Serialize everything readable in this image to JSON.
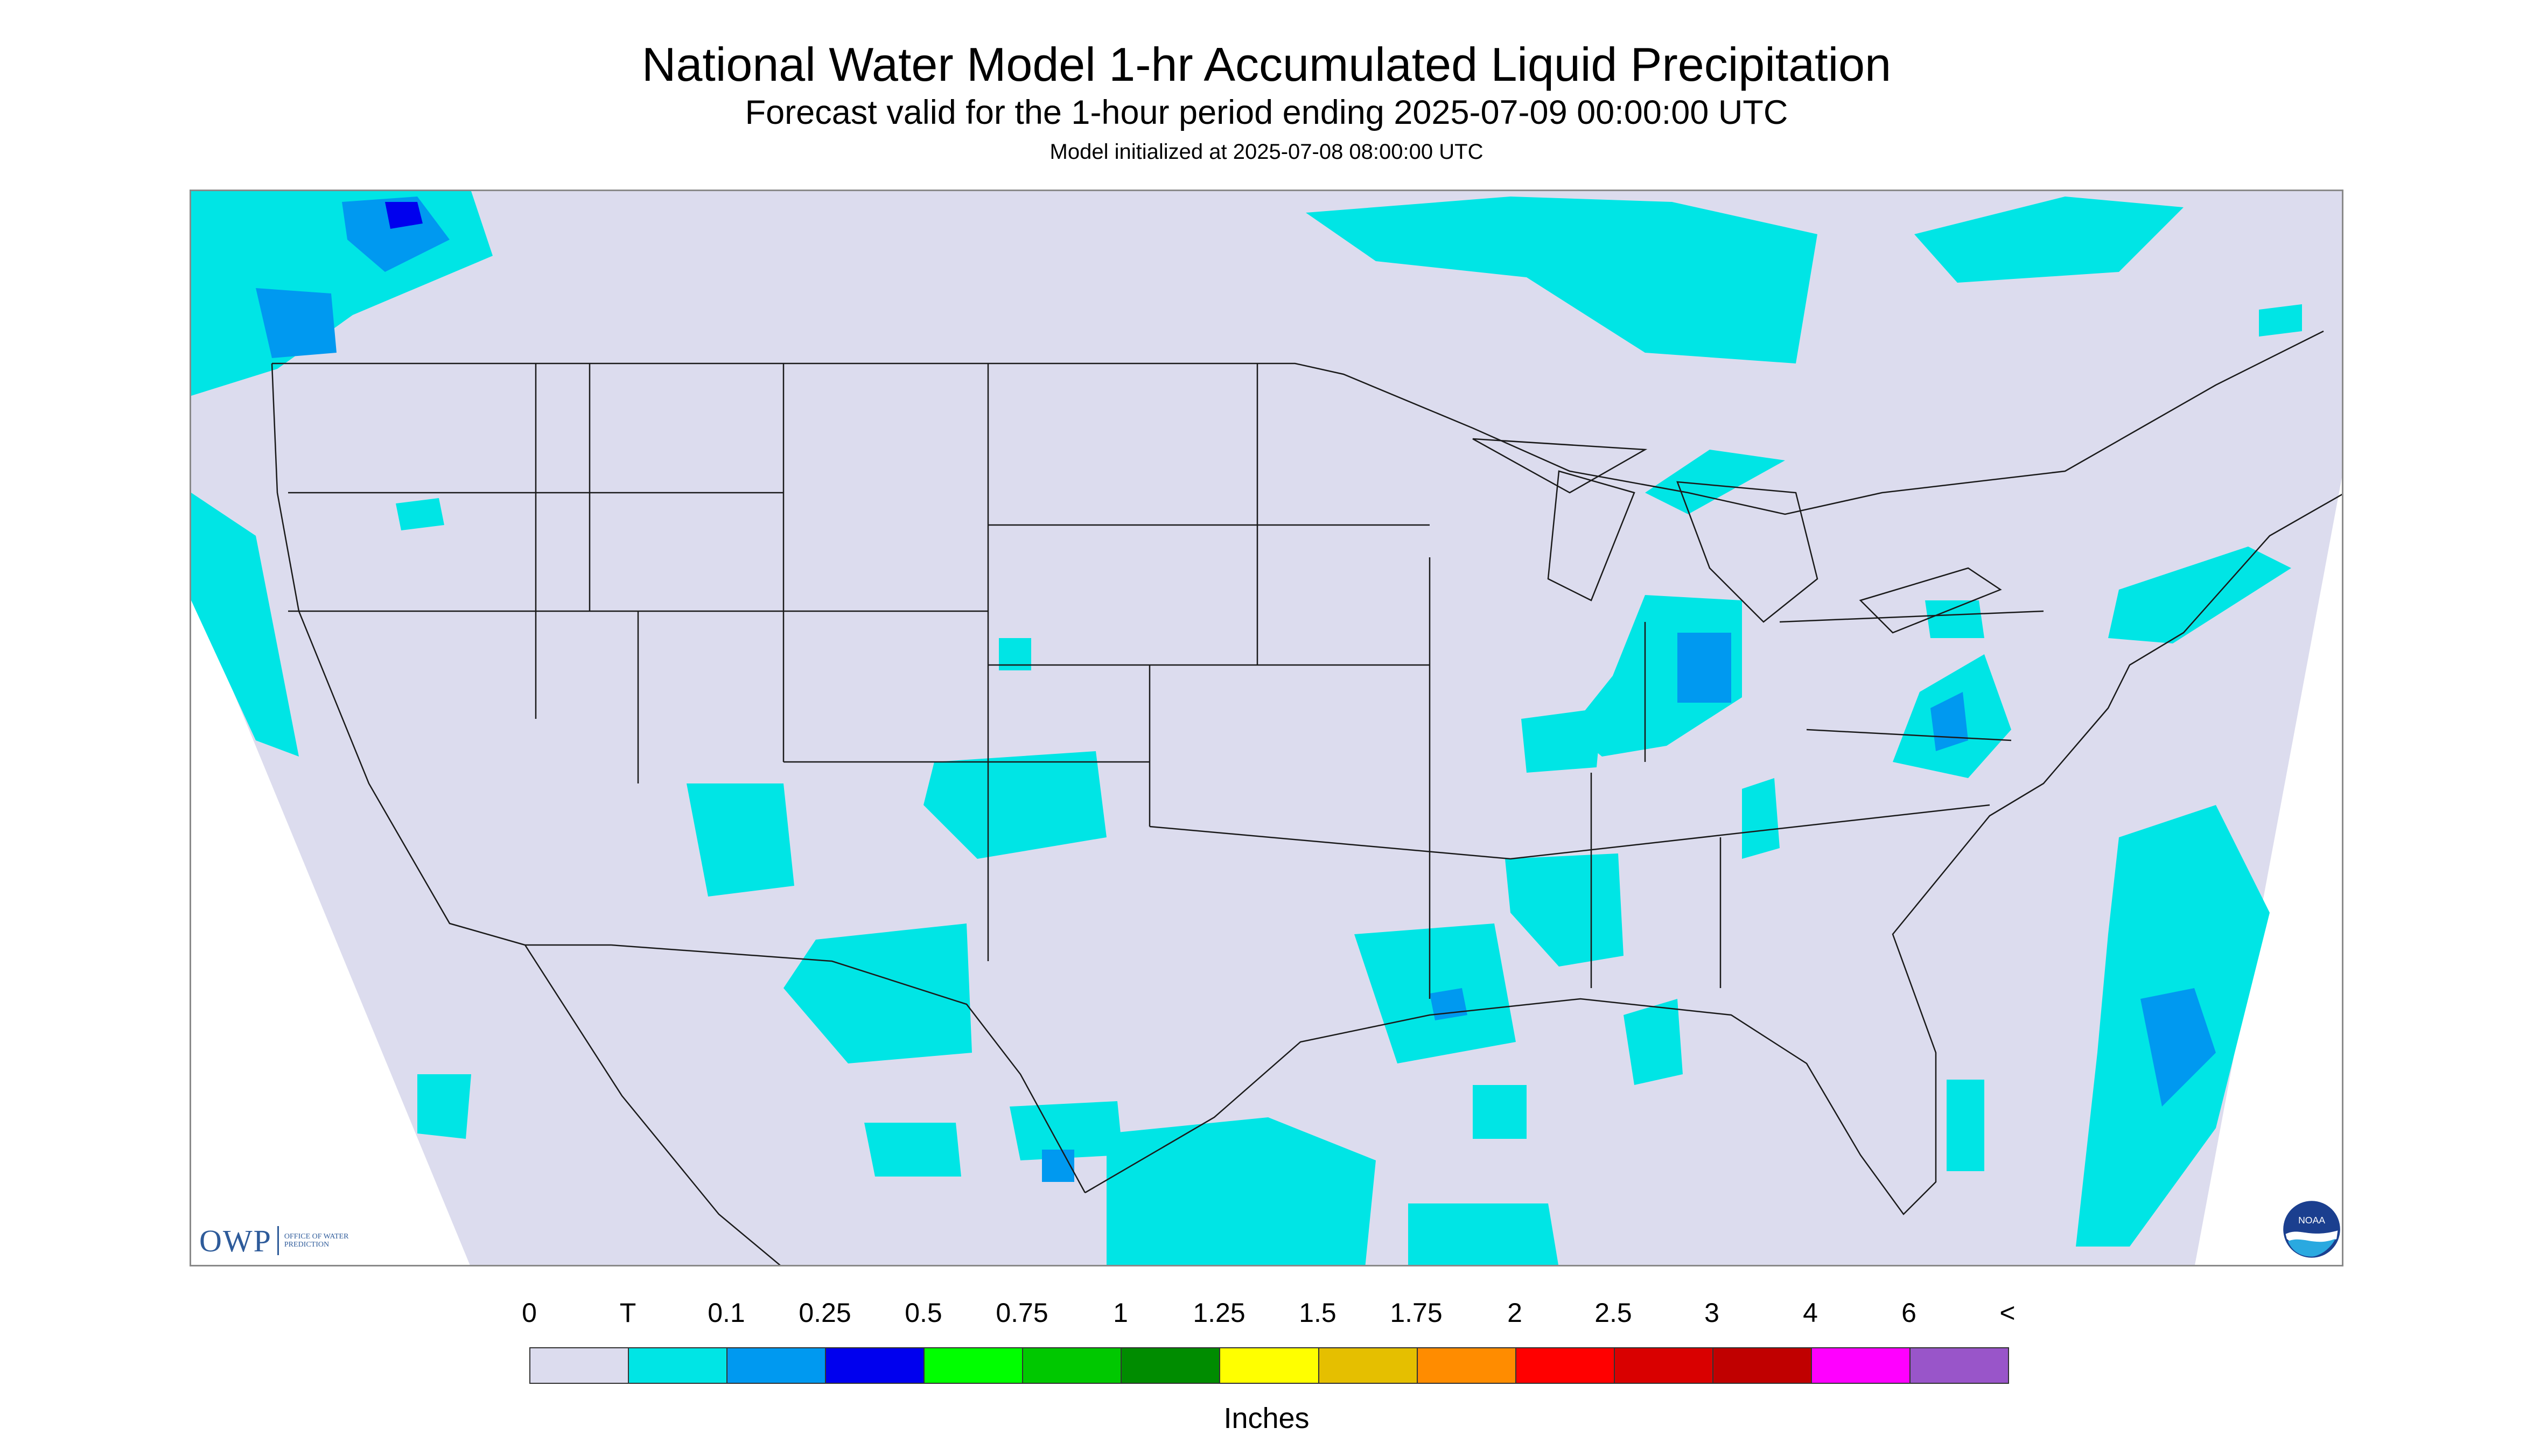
{
  "header": {
    "title": "National Water Model 1-hr Accumulated Liquid Precipitation",
    "subtitle": "Forecast valid for the 1-hour period ending 2025-07-09 00:00:00 UTC",
    "init": "Model initialized at 2025-07-08 08:00:00 UTC"
  },
  "logos": {
    "owp_mark": "OWP",
    "owp_text": "OFFICE OF WATER PREDICTION",
    "noaa": "NOAA"
  },
  "legend": {
    "labels": [
      "0",
      "T",
      "0.1",
      "0.25",
      "0.5",
      "0.75",
      "1",
      "1.25",
      "1.5",
      "1.75",
      "2",
      "2.5",
      "3",
      "4",
      "6",
      "<"
    ],
    "colors": [
      "#dcdcee",
      "#00e5e5",
      "#0099f0",
      "#0000ee",
      "#00ff00",
      "#00c800",
      "#008c00",
      "#ffff00",
      "#e5bf00",
      "#ff8c00",
      "#ff0000",
      "#d90000",
      "#c00000",
      "#ff00ff",
      "#9955c9"
    ],
    "units": "Inches"
  },
  "map": {
    "background_color": "#dcdcee",
    "outside_color": "#ffffff",
    "boundary_color": "#1a1a1a"
  }
}
